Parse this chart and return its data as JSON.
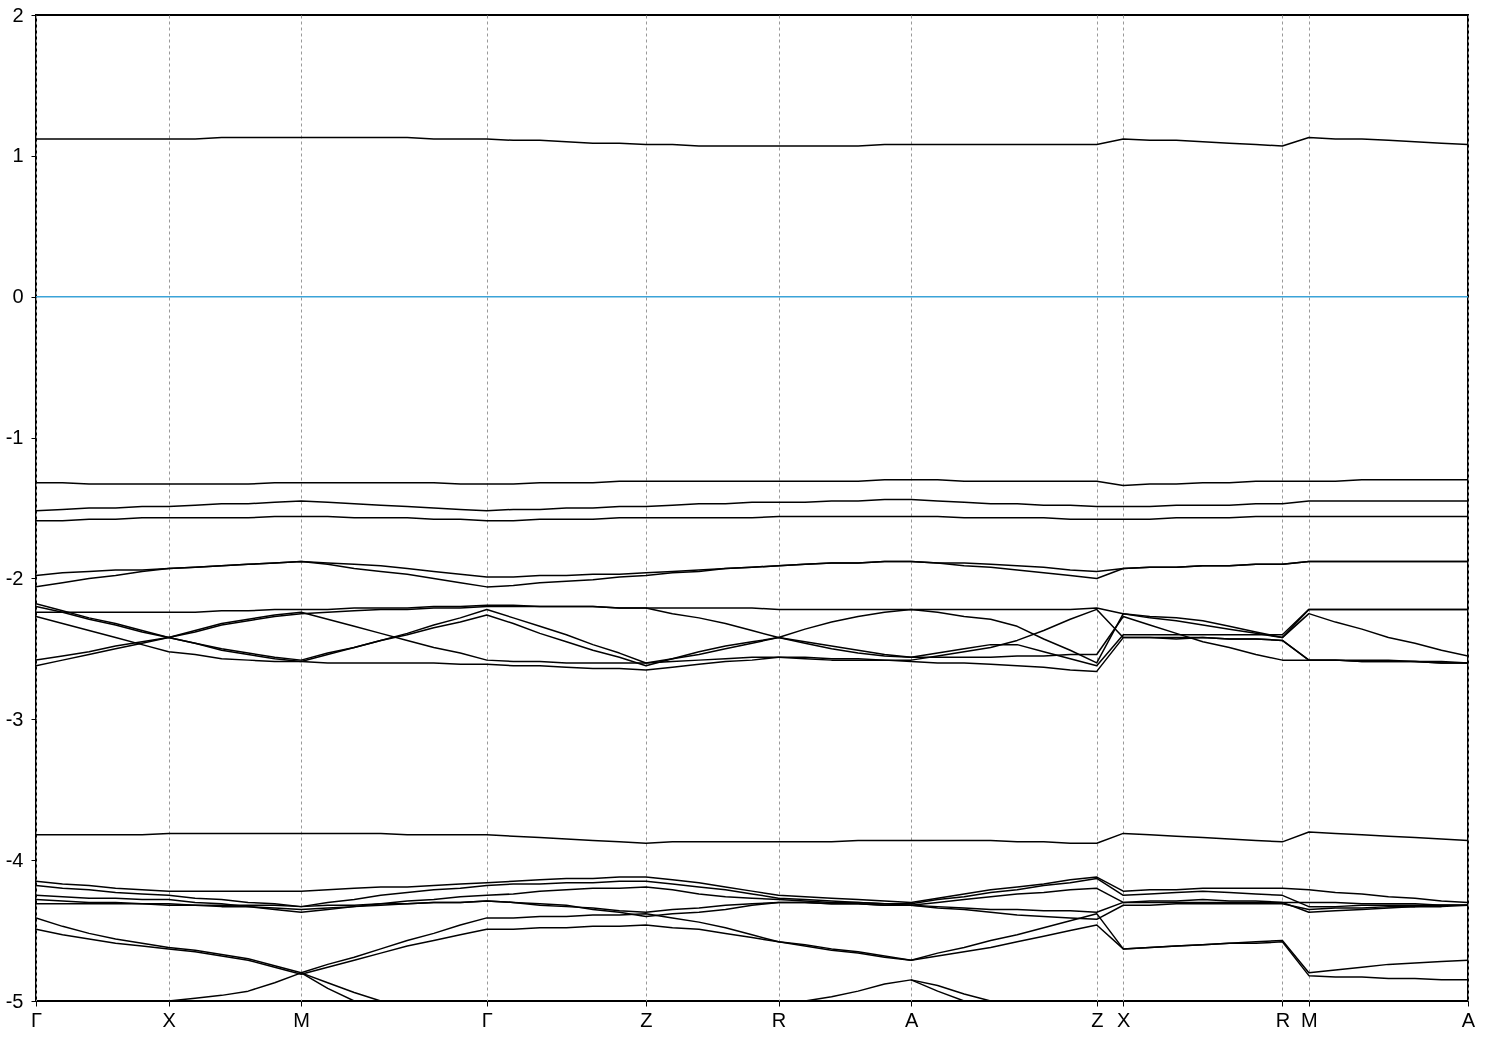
{
  "chart_data": {
    "type": "line",
    "categories": [
      "Γ",
      null,
      null,
      null,
      null,
      "X",
      null,
      null,
      null,
      null,
      "M",
      null,
      null,
      null,
      null,
      null,
      null,
      "Γ",
      null,
      null,
      null,
      null,
      null,
      "Z",
      null,
      null,
      null,
      null,
      "R",
      null,
      null,
      null,
      null,
      "A",
      null,
      null,
      null,
      null,
      null,
      null,
      "Z",
      "X",
      null,
      null,
      null,
      null,
      null,
      "R",
      "M",
      null,
      null,
      null,
      null,
      null,
      "A"
    ],
    "ylim": [
      -5,
      2
    ],
    "yticks": [
      -5,
      -4,
      -3,
      -2,
      -1,
      0,
      1,
      2
    ],
    "grid": "x",
    "line_style": "solid",
    "ref_lines": [
      {
        "axis": "y",
        "value": 0,
        "color": "#3ba3d8"
      }
    ],
    "series": [
      {
        "color": "#000000",
        "values": [
          1.12,
          1.12,
          1.12,
          1.12,
          1.12,
          1.12,
          1.12,
          1.13,
          1.13,
          1.13,
          1.13,
          1.13,
          1.13,
          1.13,
          1.13,
          1.12,
          1.12,
          1.12,
          1.11,
          1.11,
          1.1,
          1.09,
          1.09,
          1.08,
          1.08,
          1.07,
          1.07,
          1.07,
          1.07,
          1.07,
          1.07,
          1.07,
          1.08,
          1.08,
          1.08,
          1.08,
          1.08,
          1.08,
          1.08,
          1.08,
          1.08,
          1.12,
          1.11,
          1.11,
          1.1,
          1.09,
          1.08,
          1.07,
          1.13,
          1.12,
          1.12,
          1.11,
          1.1,
          1.09,
          1.08
        ]
      },
      {
        "color": "#000000",
        "values": [
          -1.32,
          -1.32,
          -1.33,
          -1.33,
          -1.33,
          -1.33,
          -1.33,
          -1.33,
          -1.33,
          -1.32,
          -1.32,
          -1.32,
          -1.32,
          -1.32,
          -1.32,
          -1.32,
          -1.33,
          -1.33,
          -1.33,
          -1.32,
          -1.32,
          -1.32,
          -1.31,
          -1.31,
          -1.31,
          -1.31,
          -1.31,
          -1.31,
          -1.31,
          -1.31,
          -1.31,
          -1.31,
          -1.3,
          -1.3,
          -1.3,
          -1.31,
          -1.31,
          -1.31,
          -1.31,
          -1.31,
          -1.31,
          -1.34,
          -1.33,
          -1.33,
          -1.32,
          -1.32,
          -1.31,
          -1.31,
          -1.31,
          -1.31,
          -1.3,
          -1.3,
          -1.3,
          -1.3,
          -1.3
        ]
      },
      {
        "color": "#000000",
        "values": [
          -1.52,
          -1.51,
          -1.5,
          -1.5,
          -1.49,
          -1.49,
          -1.48,
          -1.47,
          -1.47,
          -1.46,
          -1.45,
          -1.46,
          -1.47,
          -1.48,
          -1.49,
          -1.5,
          -1.51,
          -1.52,
          -1.51,
          -1.51,
          -1.5,
          -1.5,
          -1.49,
          -1.49,
          -1.48,
          -1.47,
          -1.47,
          -1.46,
          -1.46,
          -1.46,
          -1.45,
          -1.45,
          -1.44,
          -1.44,
          -1.45,
          -1.46,
          -1.47,
          -1.47,
          -1.48,
          -1.48,
          -1.49,
          -1.49,
          -1.49,
          -1.48,
          -1.48,
          -1.48,
          -1.47,
          -1.47,
          -1.45,
          -1.45,
          -1.45,
          -1.45,
          -1.45,
          -1.45,
          -1.45
        ]
      },
      {
        "color": "#000000",
        "values": [
          -1.59,
          -1.59,
          -1.58,
          -1.58,
          -1.57,
          -1.57,
          -1.57,
          -1.57,
          -1.57,
          -1.56,
          -1.56,
          -1.56,
          -1.57,
          -1.57,
          -1.57,
          -1.58,
          -1.58,
          -1.59,
          -1.59,
          -1.58,
          -1.58,
          -1.58,
          -1.57,
          -1.57,
          -1.57,
          -1.57,
          -1.57,
          -1.57,
          -1.56,
          -1.56,
          -1.56,
          -1.56,
          -1.56,
          -1.56,
          -1.56,
          -1.57,
          -1.57,
          -1.57,
          -1.57,
          -1.58,
          -1.58,
          -1.58,
          -1.58,
          -1.57,
          -1.57,
          -1.57,
          -1.56,
          -1.56,
          -1.56,
          -1.56,
          -1.56,
          -1.56,
          -1.56,
          -1.56,
          -1.56
        ]
      },
      {
        "color": "#000000",
        "values": [
          -1.98,
          -1.96,
          -1.95,
          -1.94,
          -1.94,
          -1.93,
          -1.92,
          -1.91,
          -1.9,
          -1.89,
          -1.88,
          -1.89,
          -1.9,
          -1.91,
          -1.93,
          -1.95,
          -1.97,
          -1.99,
          -1.99,
          -1.98,
          -1.98,
          -1.97,
          -1.97,
          -1.96,
          -1.95,
          -1.94,
          -1.93,
          -1.92,
          -1.91,
          -1.9,
          -1.89,
          -1.89,
          -1.88,
          -1.88,
          -1.89,
          -1.89,
          -1.9,
          -1.91,
          -1.92,
          -1.94,
          -1.95,
          -1.93,
          -1.92,
          -1.92,
          -1.91,
          -1.91,
          -1.9,
          -1.9,
          -1.88,
          -1.88,
          -1.88,
          -1.88,
          -1.88,
          -1.88,
          -1.88
        ]
      },
      {
        "color": "#000000",
        "values": [
          -2.06,
          -2.03,
          -2.0,
          -1.98,
          -1.95,
          -1.93,
          -1.92,
          -1.91,
          -1.9,
          -1.89,
          -1.88,
          -1.9,
          -1.93,
          -1.95,
          -1.97,
          -2.0,
          -2.03,
          -2.06,
          -2.05,
          -2.03,
          -2.02,
          -2.01,
          -1.99,
          -1.98,
          -1.96,
          -1.95,
          -1.93,
          -1.92,
          -1.91,
          -1.9,
          -1.89,
          -1.89,
          -1.88,
          -1.88,
          -1.89,
          -1.91,
          -1.92,
          -1.94,
          -1.96,
          -1.98,
          -2.0,
          -1.93,
          -1.92,
          -1.92,
          -1.91,
          -1.91,
          -1.9,
          -1.9,
          -1.88,
          -1.88,
          -1.88,
          -1.88,
          -1.88,
          -1.88,
          -1.88
        ]
      },
      {
        "color": "#000000",
        "values": [
          -2.18,
          -2.23,
          -2.28,
          -2.32,
          -2.37,
          -2.42,
          -2.46,
          -2.5,
          -2.53,
          -2.56,
          -2.58,
          -2.53,
          -2.49,
          -2.44,
          -2.39,
          -2.33,
          -2.28,
          -2.22,
          -2.28,
          -2.34,
          -2.4,
          -2.47,
          -2.53,
          -2.6,
          -2.57,
          -2.54,
          -2.5,
          -2.46,
          -2.42,
          -2.36,
          -2.31,
          -2.27,
          -2.24,
          -2.22,
          -2.24,
          -2.27,
          -2.29,
          -2.34,
          -2.43,
          -2.51,
          -2.6,
          -2.25,
          -2.28,
          -2.3,
          -2.33,
          -2.36,
          -2.39,
          -2.42,
          -2.25,
          -2.31,
          -2.36,
          -2.42,
          -2.46,
          -2.51,
          -2.55
        ]
      },
      {
        "color": "#000000",
        "values": [
          -2.2,
          -2.24,
          -2.29,
          -2.33,
          -2.38,
          -2.42,
          -2.46,
          -2.51,
          -2.54,
          -2.57,
          -2.59,
          -2.54,
          -2.49,
          -2.44,
          -2.4,
          -2.35,
          -2.31,
          -2.26,
          -2.32,
          -2.39,
          -2.45,
          -2.51,
          -2.56,
          -2.62,
          -2.57,
          -2.52,
          -2.48,
          -2.45,
          -2.42,
          -2.45,
          -2.48,
          -2.51,
          -2.54,
          -2.56,
          -2.53,
          -2.5,
          -2.47,
          -2.47,
          -2.52,
          -2.57,
          -2.62,
          -2.4,
          -2.4,
          -2.4,
          -2.4,
          -2.4,
          -2.4,
          -2.4,
          -2.22,
          -2.22,
          -2.22,
          -2.22,
          -2.22,
          -2.22,
          -2.22
        ]
      },
      {
        "color": "#000000",
        "values": [
          -2.58,
          -2.55,
          -2.52,
          -2.48,
          -2.45,
          -2.42,
          -2.37,
          -2.32,
          -2.29,
          -2.26,
          -2.24,
          -2.29,
          -2.34,
          -2.39,
          -2.44,
          -2.49,
          -2.53,
          -2.58,
          -2.59,
          -2.59,
          -2.6,
          -2.6,
          -2.6,
          -2.6,
          -2.59,
          -2.58,
          -2.57,
          -2.56,
          -2.56,
          -2.57,
          -2.58,
          -2.58,
          -2.58,
          -2.58,
          -2.55,
          -2.52,
          -2.49,
          -2.44,
          -2.37,
          -2.29,
          -2.22,
          -2.42,
          -2.42,
          -2.42,
          -2.42,
          -2.43,
          -2.43,
          -2.44,
          -2.58,
          -2.58,
          -2.58,
          -2.58,
          -2.59,
          -2.59,
          -2.6
        ]
      },
      {
        "color": "#000000",
        "values": [
          -2.62,
          -2.58,
          -2.54,
          -2.5,
          -2.46,
          -2.42,
          -2.38,
          -2.33,
          -2.3,
          -2.27,
          -2.25,
          -2.24,
          -2.23,
          -2.22,
          -2.22,
          -2.21,
          -2.21,
          -2.2,
          -2.2,
          -2.2,
          -2.2,
          -2.2,
          -2.21,
          -2.21,
          -2.25,
          -2.28,
          -2.32,
          -2.37,
          -2.42,
          -2.46,
          -2.5,
          -2.53,
          -2.55,
          -2.56,
          -2.56,
          -2.56,
          -2.56,
          -2.55,
          -2.55,
          -2.54,
          -2.54,
          -2.27,
          -2.33,
          -2.39,
          -2.45,
          -2.49,
          -2.54,
          -2.58,
          -2.58,
          -2.58,
          -2.59,
          -2.59,
          -2.59,
          -2.6,
          -2.6
        ]
      },
      {
        "color": "#000000",
        "values": [
          -2.24,
          -2.24,
          -2.24,
          -2.24,
          -2.24,
          -2.24,
          -2.24,
          -2.23,
          -2.23,
          -2.22,
          -2.22,
          -2.22,
          -2.21,
          -2.21,
          -2.21,
          -2.2,
          -2.2,
          -2.19,
          -2.19,
          -2.2,
          -2.2,
          -2.2,
          -2.21,
          -2.21,
          -2.21,
          -2.21,
          -2.21,
          -2.21,
          -2.22,
          -2.22,
          -2.22,
          -2.22,
          -2.22,
          -2.22,
          -2.22,
          -2.22,
          -2.22,
          -2.22,
          -2.22,
          -2.22,
          -2.21,
          -2.25,
          -2.27,
          -2.28,
          -2.3,
          -2.34,
          -2.38,
          -2.42,
          -2.22,
          -2.22,
          -2.22,
          -2.22,
          -2.22,
          -2.22,
          -2.22
        ]
      },
      {
        "color": "#000000",
        "values": [
          -2.27,
          -2.32,
          -2.37,
          -2.42,
          -2.47,
          -2.52,
          -2.54,
          -2.57,
          -2.58,
          -2.59,
          -2.59,
          -2.6,
          -2.6,
          -2.6,
          -2.6,
          -2.6,
          -2.61,
          -2.61,
          -2.62,
          -2.62,
          -2.63,
          -2.64,
          -2.64,
          -2.65,
          -2.63,
          -2.61,
          -2.59,
          -2.58,
          -2.56,
          -2.56,
          -2.57,
          -2.57,
          -2.58,
          -2.59,
          -2.6,
          -2.6,
          -2.61,
          -2.62,
          -2.63,
          -2.65,
          -2.66,
          -2.42,
          -2.42,
          -2.43,
          -2.42,
          -2.43,
          -2.43,
          -2.44,
          -2.58,
          -2.58,
          -2.59,
          -2.59,
          -2.59,
          -2.6,
          -2.6
        ]
      },
      {
        "color": "#000000",
        "values": [
          -3.82,
          -3.82,
          -3.82,
          -3.82,
          -3.82,
          -3.81,
          -3.81,
          -3.81,
          -3.81,
          -3.81,
          -3.81,
          -3.81,
          -3.81,
          -3.81,
          -3.82,
          -3.82,
          -3.82,
          -3.82,
          -3.83,
          -3.84,
          -3.85,
          -3.86,
          -3.87,
          -3.88,
          -3.87,
          -3.87,
          -3.87,
          -3.87,
          -3.87,
          -3.87,
          -3.87,
          -3.86,
          -3.86,
          -3.86,
          -3.86,
          -3.86,
          -3.86,
          -3.87,
          -3.87,
          -3.88,
          -3.88,
          -3.81,
          -3.82,
          -3.83,
          -3.84,
          -3.85,
          -3.86,
          -3.87,
          -3.8,
          -3.81,
          -3.82,
          -3.83,
          -3.84,
          -3.85,
          -3.86
        ]
      },
      {
        "color": "#000000",
        "values": [
          -4.15,
          -4.17,
          -4.18,
          -4.2,
          -4.21,
          -4.22,
          -4.22,
          -4.22,
          -4.22,
          -4.22,
          -4.22,
          -4.21,
          -4.2,
          -4.19,
          -4.19,
          -4.18,
          -4.17,
          -4.16,
          -4.15,
          -4.14,
          -4.13,
          -4.13,
          -4.12,
          -4.12,
          -4.14,
          -4.16,
          -4.19,
          -4.22,
          -4.25,
          -4.26,
          -4.27,
          -4.28,
          -4.29,
          -4.3,
          -4.27,
          -4.24,
          -4.21,
          -4.19,
          -4.17,
          -4.14,
          -4.12,
          -4.22,
          -4.21,
          -4.21,
          -4.2,
          -4.2,
          -4.2,
          -4.2,
          -4.21,
          -4.23,
          -4.24,
          -4.26,
          -4.27,
          -4.29,
          -4.3
        ]
      },
      {
        "color": "#000000",
        "values": [
          -4.18,
          -4.2,
          -4.21,
          -4.23,
          -4.24,
          -4.25,
          -4.27,
          -4.28,
          -4.3,
          -4.31,
          -4.33,
          -4.3,
          -4.28,
          -4.25,
          -4.23,
          -4.21,
          -4.2,
          -4.18,
          -4.17,
          -4.17,
          -4.16,
          -4.16,
          -4.15,
          -4.15,
          -4.17,
          -4.19,
          -4.21,
          -4.24,
          -4.27,
          -4.28,
          -4.29,
          -4.3,
          -4.31,
          -4.31,
          -4.28,
          -4.26,
          -4.23,
          -4.21,
          -4.18,
          -4.16,
          -4.13,
          -4.25,
          -4.24,
          -4.23,
          -4.22,
          -4.23,
          -4.24,
          -4.25,
          -4.33,
          -4.33,
          -4.32,
          -4.32,
          -4.32,
          -4.32,
          -4.32
        ]
      },
      {
        "color": "#000000",
        "values": [
          -4.25,
          -4.26,
          -4.27,
          -4.27,
          -4.28,
          -4.28,
          -4.3,
          -4.31,
          -4.33,
          -4.35,
          -4.37,
          -4.35,
          -4.33,
          -4.31,
          -4.29,
          -4.28,
          -4.26,
          -4.25,
          -4.24,
          -4.22,
          -4.21,
          -4.2,
          -4.2,
          -4.19,
          -4.21,
          -4.24,
          -4.26,
          -4.27,
          -4.28,
          -4.29,
          -4.3,
          -4.3,
          -4.31,
          -4.32,
          -4.3,
          -4.28,
          -4.26,
          -4.24,
          -4.23,
          -4.21,
          -4.2,
          -4.3,
          -4.29,
          -4.29,
          -4.28,
          -4.29,
          -4.29,
          -4.3,
          -4.37,
          -4.36,
          -4.35,
          -4.34,
          -4.33,
          -4.33,
          -4.32
        ]
      },
      {
        "color": "#000000",
        "values": [
          -4.28,
          -4.29,
          -4.3,
          -4.3,
          -4.31,
          -4.31,
          -4.32,
          -4.33,
          -4.33,
          -4.34,
          -4.35,
          -4.34,
          -4.33,
          -4.32,
          -4.31,
          -4.3,
          -4.3,
          -4.29,
          -4.3,
          -4.32,
          -4.33,
          -4.34,
          -4.36,
          -4.37,
          -4.35,
          -4.34,
          -4.32,
          -4.31,
          -4.3,
          -4.3,
          -4.31,
          -4.31,
          -4.32,
          -4.32,
          -4.33,
          -4.34,
          -4.35,
          -4.35,
          -4.36,
          -4.36,
          -4.37,
          -4.3,
          -4.3,
          -4.3,
          -4.3,
          -4.3,
          -4.3,
          -4.3,
          -4.3,
          -4.3,
          -4.31,
          -4.31,
          -4.31,
          -4.32,
          -4.32
        ]
      },
      {
        "color": "#000000",
        "values": [
          -4.31,
          -4.31,
          -4.31,
          -4.31,
          -4.31,
          -4.32,
          -4.32,
          -4.32,
          -4.32,
          -4.32,
          -4.33,
          -4.32,
          -4.32,
          -4.31,
          -4.31,
          -4.3,
          -4.3,
          -4.29,
          -4.3,
          -4.31,
          -4.32,
          -4.35,
          -4.37,
          -4.4,
          -4.38,
          -4.37,
          -4.35,
          -4.32,
          -4.3,
          -4.3,
          -4.31,
          -4.31,
          -4.32,
          -4.32,
          -4.34,
          -4.35,
          -4.37,
          -4.39,
          -4.4,
          -4.41,
          -4.42,
          -4.32,
          -4.32,
          -4.31,
          -4.31,
          -4.31,
          -4.31,
          -4.31,
          -4.35,
          -4.34,
          -4.34,
          -4.33,
          -4.33,
          -4.32,
          -4.32
        ]
      },
      {
        "color": "#000000",
        "values": [
          -4.41,
          -4.47,
          -4.52,
          -4.56,
          -4.59,
          -4.62,
          -4.64,
          -4.67,
          -4.7,
          -4.75,
          -4.8,
          -4.74,
          -4.69,
          -4.63,
          -4.57,
          -4.52,
          -4.46,
          -4.41,
          -4.41,
          -4.4,
          -4.4,
          -4.39,
          -4.39,
          -4.38,
          -4.41,
          -4.44,
          -4.48,
          -4.53,
          -4.58,
          -4.6,
          -4.63,
          -4.65,
          -4.68,
          -4.71,
          -4.66,
          -4.62,
          -4.57,
          -4.53,
          -4.48,
          -4.43,
          -4.38,
          -4.63,
          -4.62,
          -4.61,
          -4.6,
          -4.59,
          -4.58,
          -4.57,
          -4.8,
          -4.78,
          -4.76,
          -4.74,
          -4.73,
          -4.72,
          -4.71
        ]
      },
      {
        "color": "#000000",
        "values": [
          -4.49,
          -4.53,
          -4.56,
          -4.59,
          -4.61,
          -4.63,
          -4.65,
          -4.68,
          -4.71,
          -4.76,
          -4.81,
          -4.76,
          -4.71,
          -4.66,
          -4.61,
          -4.57,
          -4.53,
          -4.49,
          -4.49,
          -4.48,
          -4.48,
          -4.47,
          -4.47,
          -4.46,
          -4.48,
          -4.49,
          -4.52,
          -4.55,
          -4.58,
          -4.61,
          -4.64,
          -4.66,
          -4.69,
          -4.71,
          -4.68,
          -4.65,
          -4.62,
          -4.58,
          -4.54,
          -4.5,
          -4.46,
          -4.63,
          -4.62,
          -4.61,
          -4.6,
          -4.59,
          -4.59,
          -4.58,
          -4.82,
          -4.83,
          -4.83,
          -4.84,
          -4.84,
          -4.85,
          -4.85
        ]
      },
      {
        "color": "#000000",
        "values": [
          null,
          null,
          null,
          null,
          null,
          -5.0,
          -4.98,
          -4.96,
          -4.93,
          -4.87,
          -4.8,
          -4.87,
          -4.94,
          -5.0,
          null,
          null,
          null,
          null,
          null,
          null,
          null,
          null,
          null,
          null,
          null,
          null,
          null,
          null,
          null,
          null,
          null,
          null,
          null,
          null,
          null,
          null,
          null,
          null,
          null,
          null,
          null,
          null,
          null,
          null,
          null,
          null,
          null,
          null,
          null,
          null,
          null,
          null,
          null,
          null,
          null
        ]
      },
      {
        "color": "#000000",
        "values": [
          null,
          null,
          null,
          null,
          null,
          null,
          null,
          null,
          null,
          null,
          -4.8,
          -4.91,
          -5.0,
          null,
          null,
          null,
          null,
          null,
          null,
          null,
          null,
          null,
          null,
          null,
          null,
          null,
          null,
          null,
          null,
          null,
          null,
          null,
          null,
          null,
          null,
          null,
          null,
          null,
          null,
          null,
          null,
          null,
          null,
          null,
          null,
          null,
          null,
          null,
          null,
          null,
          null,
          null,
          null,
          null,
          null
        ]
      },
      {
        "color": "#000000",
        "values": [
          null,
          null,
          null,
          null,
          null,
          null,
          null,
          null,
          null,
          null,
          null,
          null,
          null,
          null,
          null,
          null,
          null,
          null,
          null,
          null,
          null,
          null,
          null,
          null,
          null,
          null,
          null,
          null,
          null,
          -5.0,
          -4.97,
          -4.93,
          -4.88,
          -4.85,
          -4.89,
          -4.95,
          -5.0,
          null,
          null,
          null,
          null,
          null,
          null,
          null,
          null,
          null,
          null,
          null,
          null,
          null,
          null,
          null,
          null,
          null,
          null
        ]
      },
      {
        "color": "#000000",
        "values": [
          null,
          null,
          null,
          null,
          null,
          null,
          null,
          null,
          null,
          null,
          null,
          null,
          null,
          null,
          null,
          null,
          null,
          null,
          null,
          null,
          null,
          null,
          null,
          null,
          null,
          null,
          null,
          null,
          null,
          null,
          null,
          null,
          null,
          -4.85,
          -4.93,
          -5.0,
          null,
          null,
          null,
          null,
          null,
          null,
          null,
          null,
          null,
          null,
          null,
          null,
          null,
          null,
          null,
          null,
          null,
          null,
          null
        ]
      }
    ]
  }
}
